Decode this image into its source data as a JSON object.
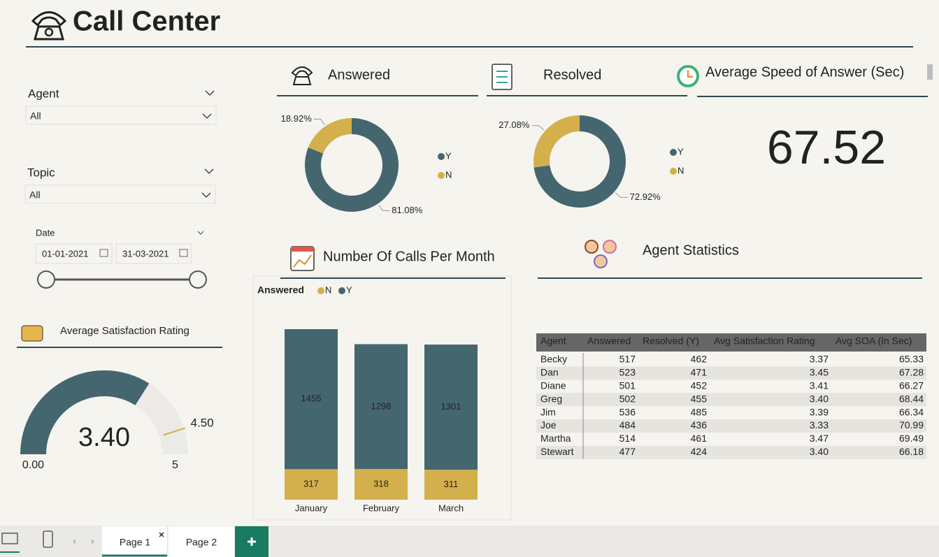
{
  "header": {
    "title": "Call Center"
  },
  "filters": {
    "agent": {
      "label": "Agent",
      "value": "All"
    },
    "topic": {
      "label": "Topic",
      "value": "All"
    },
    "date": {
      "label": "Date",
      "start": "01-01-2021",
      "end": "31-03-2021"
    }
  },
  "chart_data": [
    {
      "type": "pie",
      "title": "Answered",
      "donut": true,
      "categories": [
        "Y",
        "N"
      ],
      "values": [
        81.08,
        18.92
      ],
      "value_labels": [
        "81.08%",
        "18.92%"
      ],
      "colors": [
        "#44666f",
        "#d4b04c"
      ]
    },
    {
      "type": "pie",
      "title": "Resolved",
      "donut": true,
      "categories": [
        "Y",
        "N"
      ],
      "values": [
        72.92,
        27.08
      ],
      "value_labels": [
        "72.92%",
        "27.08%"
      ],
      "colors": [
        "#44666f",
        "#d4b04c"
      ]
    },
    {
      "type": "card",
      "title": "Average Speed of Answer (Sec)",
      "value": 67.52
    },
    {
      "type": "gauge",
      "title": "Average Satisfaction Rating",
      "value": 3.4,
      "value_label": "3.40",
      "ylim": [
        0,
        5
      ],
      "yticks": [
        {
          "value": 0,
          "label": "0.00"
        },
        5
      ],
      "target": 4.5,
      "target_label": "4.50",
      "color": "#44666f",
      "track_color": "#ebeae6",
      "target_color": "#d4b04c"
    },
    {
      "type": "bar",
      "title": "Number Of Calls Per Month",
      "stacked": true,
      "legend_title": "Answered",
      "categories": [
        "January",
        "February",
        "March"
      ],
      "series": [
        {
          "name": "N",
          "color": "#d4b04c",
          "values": [
            317,
            318,
            311
          ]
        },
        {
          "name": "Y",
          "color": "#44666f",
          "values": [
            1455,
            1298,
            1301
          ]
        }
      ]
    }
  ],
  "table": {
    "title": "Agent Statistics",
    "columns": [
      "Agent",
      "Answered",
      "Resolved (Y)",
      "Avg Satisfaction Rating",
      "Avg SOA (In Sec)"
    ],
    "rows": [
      [
        "Becky",
        "517",
        "462",
        "3.37",
        "65.33"
      ],
      [
        "Dan",
        "523",
        "471",
        "3.45",
        "67.28"
      ],
      [
        "Diane",
        "501",
        "452",
        "3.41",
        "66.27"
      ],
      [
        "Greg",
        "502",
        "455",
        "3.40",
        "68.44"
      ],
      [
        "Jim",
        "536",
        "485",
        "3.39",
        "66.34"
      ],
      [
        "Joe",
        "484",
        "436",
        "3.33",
        "70.99"
      ],
      [
        "Martha",
        "514",
        "461",
        "3.47",
        "69.49"
      ],
      [
        "Stewart",
        "477",
        "424",
        "3.40",
        "66.18"
      ]
    ]
  },
  "tabs": [
    "Page 1",
    "Page 2"
  ]
}
